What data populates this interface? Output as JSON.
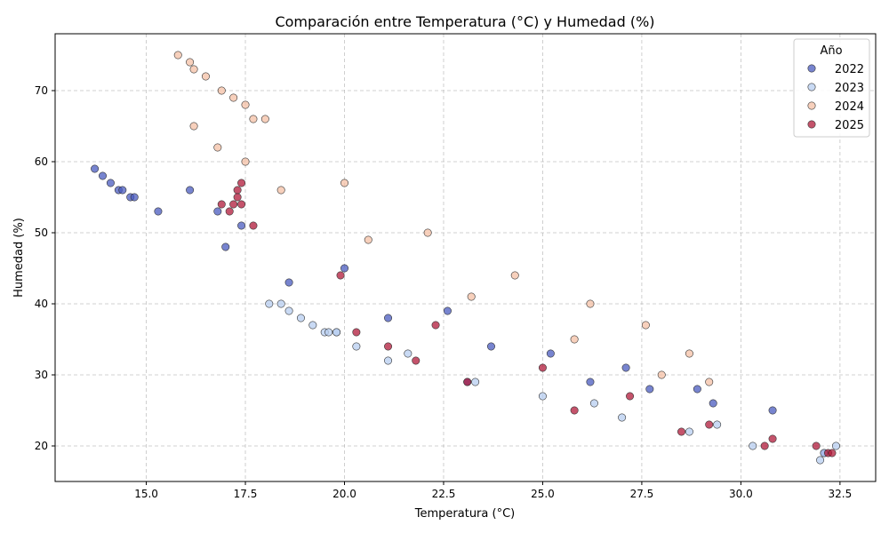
{
  "chart_data": {
    "type": "scatter",
    "title": "Comparación entre Temperatura (°C) y Humedad (%)",
    "xlabel": "Temperatura (°C)",
    "ylabel": "Humedad (%)",
    "xlim": [
      12.7,
      33.4
    ],
    "ylim": [
      15,
      78
    ],
    "xticks": [
      15.0,
      17.5,
      20.0,
      22.5,
      25.0,
      27.5,
      30.0,
      32.5
    ],
    "xtick_labels": [
      "15.0",
      "17.5",
      "20.0",
      "22.5",
      "25.0",
      "27.5",
      "30.0",
      "32.5"
    ],
    "yticks": [
      20,
      30,
      40,
      50,
      60,
      70
    ],
    "ytick_labels": [
      "20",
      "30",
      "40",
      "50",
      "60",
      "70"
    ],
    "grid": true,
    "legend": {
      "title": "Año",
      "position": "top-right"
    },
    "series": [
      {
        "name": "2022",
        "color": "#4a5bbf",
        "points": [
          [
            13.7,
            59
          ],
          [
            13.9,
            58
          ],
          [
            14.1,
            57
          ],
          [
            14.3,
            56
          ],
          [
            14.4,
            56
          ],
          [
            14.6,
            55
          ],
          [
            14.7,
            55
          ],
          [
            15.3,
            53
          ],
          [
            16.1,
            56
          ],
          [
            16.8,
            53
          ],
          [
            17.0,
            48
          ],
          [
            17.4,
            51
          ],
          [
            18.6,
            43
          ],
          [
            20.0,
            45
          ],
          [
            21.1,
            38
          ],
          [
            22.6,
            39
          ],
          [
            23.1,
            29
          ],
          [
            23.7,
            34
          ],
          [
            25.2,
            33
          ],
          [
            26.2,
            29
          ],
          [
            27.1,
            31
          ],
          [
            27.7,
            28
          ],
          [
            28.9,
            28
          ],
          [
            29.3,
            26
          ],
          [
            30.8,
            25
          ],
          [
            32.1,
            19
          ]
        ]
      },
      {
        "name": "2023",
        "color": "#b7cdf0",
        "points": [
          [
            18.1,
            40
          ],
          [
            18.4,
            40
          ],
          [
            18.6,
            39
          ],
          [
            18.9,
            38
          ],
          [
            19.2,
            37
          ],
          [
            19.5,
            36
          ],
          [
            19.6,
            36
          ],
          [
            19.8,
            36
          ],
          [
            19.8,
            36
          ],
          [
            20.3,
            34
          ],
          [
            21.1,
            32
          ],
          [
            21.6,
            33
          ],
          [
            23.3,
            29
          ],
          [
            25.0,
            27
          ],
          [
            26.3,
            26
          ],
          [
            27.0,
            24
          ],
          [
            28.7,
            22
          ],
          [
            29.4,
            23
          ],
          [
            30.3,
            20
          ],
          [
            32.0,
            18
          ],
          [
            32.1,
            19
          ],
          [
            32.4,
            20
          ]
        ]
      },
      {
        "name": "2024",
        "color": "#f4c0a6",
        "points": [
          [
            15.8,
            75
          ],
          [
            16.1,
            74
          ],
          [
            16.2,
            73
          ],
          [
            16.5,
            72
          ],
          [
            16.9,
            70
          ],
          [
            17.2,
            69
          ],
          [
            17.5,
            68
          ],
          [
            17.7,
            66
          ],
          [
            18.0,
            66
          ],
          [
            16.2,
            65
          ],
          [
            16.8,
            62
          ],
          [
            17.5,
            60
          ],
          [
            18.4,
            56
          ],
          [
            20.0,
            57
          ],
          [
            20.6,
            49
          ],
          [
            22.1,
            50
          ],
          [
            23.2,
            41
          ],
          [
            24.3,
            44
          ],
          [
            25.8,
            35
          ],
          [
            26.2,
            40
          ],
          [
            27.6,
            37
          ],
          [
            28.0,
            30
          ],
          [
            28.7,
            33
          ],
          [
            29.2,
            29
          ]
        ]
      },
      {
        "name": "2025",
        "color": "#b01a3a",
        "points": [
          [
            16.9,
            54
          ],
          [
            17.1,
            53
          ],
          [
            17.2,
            54
          ],
          [
            17.3,
            56
          ],
          [
            17.3,
            55
          ],
          [
            17.4,
            57
          ],
          [
            17.4,
            54
          ],
          [
            17.7,
            51
          ],
          [
            19.9,
            44
          ],
          [
            20.3,
            36
          ],
          [
            21.1,
            34
          ],
          [
            21.8,
            32
          ],
          [
            22.3,
            37
          ],
          [
            23.1,
            29
          ],
          [
            25.0,
            31
          ],
          [
            25.8,
            25
          ],
          [
            27.2,
            27
          ],
          [
            28.5,
            22
          ],
          [
            29.2,
            23
          ],
          [
            30.6,
            20
          ],
          [
            30.8,
            21
          ],
          [
            31.9,
            20
          ],
          [
            32.2,
            19
          ],
          [
            32.3,
            19
          ]
        ]
      }
    ]
  }
}
